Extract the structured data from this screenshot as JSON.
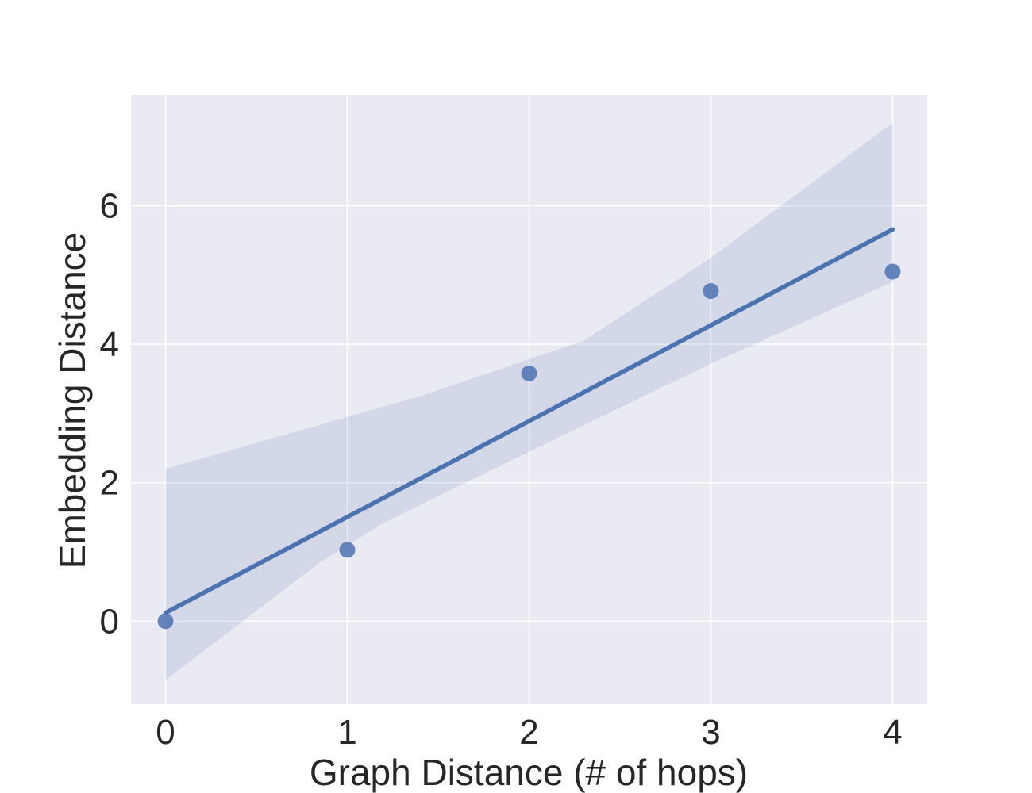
{
  "chart_data": {
    "type": "scatter",
    "title": "",
    "xlabel": "Graph Distance (# of hops)",
    "ylabel": "Embedding Distance",
    "xlim": [
      -0.19,
      4.19
    ],
    "ylim": [
      -1.2,
      7.6
    ],
    "xticks": [
      0,
      1,
      2,
      3,
      4
    ],
    "yticks": [
      0,
      2,
      4,
      6
    ],
    "xtick_labels": [
      "0",
      "1",
      "2",
      "3",
      "4"
    ],
    "ytick_labels": [
      "0",
      "2",
      "4",
      "6"
    ],
    "grid": true,
    "background": "#eaeaf2",
    "grid_color": "#ffffff",
    "series": [
      {
        "points": [
          {
            "x": 0,
            "y": 0.0
          },
          {
            "x": 1,
            "y": 1.03
          },
          {
            "x": 2,
            "y": 3.58
          },
          {
            "x": 3,
            "y": 4.77
          },
          {
            "x": 4,
            "y": 5.05
          }
        ],
        "color": "#4c72b0"
      }
    ],
    "regression": {
      "x": [
        0,
        4
      ],
      "y": [
        0.12,
        5.66
      ],
      "color": "#4c72b0"
    },
    "confidence_band": {
      "color": "#4c72b0",
      "upper": [
        {
          "x": 0,
          "y": 2.2
        },
        {
          "x": 1.4,
          "y": 3.25
        },
        {
          "x": 2.3,
          "y": 4.05
        },
        {
          "x": 2.65,
          "y": 4.65
        },
        {
          "x": 3.0,
          "y": 5.25
        },
        {
          "x": 4,
          "y": 7.2
        }
      ],
      "lower": [
        {
          "x": 4,
          "y": 4.9
        },
        {
          "x": 3.0,
          "y": 3.72
        },
        {
          "x": 2.0,
          "y": 2.45
        },
        {
          "x": 1.2,
          "y": 1.42
        },
        {
          "x": 0.85,
          "y": 0.85
        },
        {
          "x": 0,
          "y": -0.85
        }
      ]
    }
  }
}
